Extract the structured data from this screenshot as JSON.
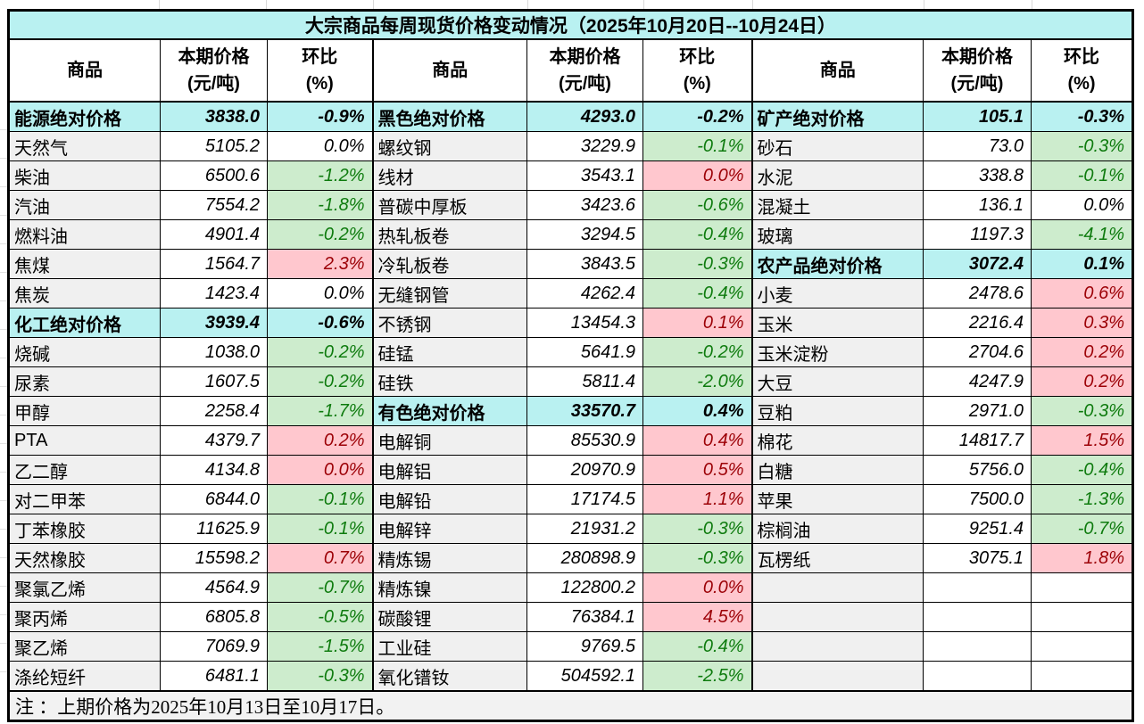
{
  "chart_data": {
    "type": "table",
    "title": "大宗商品每周现货价格变动情况（2025年10月20日--10月24日）",
    "note": "注 ：上期价格为2025年10月13日至10月17日。",
    "columns": {
      "name": "商品",
      "price_line1": "本期价格",
      "price_line2": "(元/吨)",
      "pct_line1": "环比",
      "pct_line2": "(%)"
    },
    "colors": {
      "section_bg": "#b9f1f1",
      "name_bg": "#f0f0f0",
      "pct_down_bg": "#cdeccd",
      "pct_down_text": "#0e7b0e",
      "pct_up_bg": "#ffc7ce",
      "pct_up_text": "#9c0006",
      "note_bg": "#f2f2f2",
      "border": "#000000"
    },
    "groups": [
      {
        "rows": [
          {
            "type": "section",
            "name": "能源绝对价格",
            "price": "3838.0",
            "pct": "-0.9%"
          },
          {
            "type": "flat",
            "name": "天然气",
            "price": "5105.2",
            "pct": "0.0%"
          },
          {
            "type": "down",
            "name": "柴油",
            "price": "6500.6",
            "pct": "-1.2%"
          },
          {
            "type": "down",
            "name": "汽油",
            "price": "7554.2",
            "pct": "-1.8%"
          },
          {
            "type": "down",
            "name": "燃料油",
            "price": "4901.4",
            "pct": "-0.2%"
          },
          {
            "type": "up",
            "name": "焦煤",
            "price": "1564.7",
            "pct": "2.3%"
          },
          {
            "type": "flat",
            "name": "焦炭",
            "price": "1423.4",
            "pct": "0.0%"
          },
          {
            "type": "section",
            "name": "化工绝对价格",
            "price": "3939.4",
            "pct": "-0.6%"
          },
          {
            "type": "down",
            "name": "烧碱",
            "price": "1038.0",
            "pct": "-0.2%"
          },
          {
            "type": "down",
            "name": "尿素",
            "price": "1607.5",
            "pct": "-0.2%"
          },
          {
            "type": "down",
            "name": "甲醇",
            "price": "2258.4",
            "pct": "-1.7%"
          },
          {
            "type": "up",
            "name": "PTA",
            "price": "4379.7",
            "pct": "0.2%"
          },
          {
            "type": "up",
            "name": "乙二醇",
            "price": "4134.8",
            "pct": "0.0%"
          },
          {
            "type": "down",
            "name": "对二甲苯",
            "price": "6844.0",
            "pct": "-0.1%"
          },
          {
            "type": "down",
            "name": "丁苯橡胶",
            "price": "11625.9",
            "pct": "-0.1%"
          },
          {
            "type": "up",
            "name": "天然橡胶",
            "price": "15598.2",
            "pct": "0.7%"
          },
          {
            "type": "down",
            "name": "聚氯乙烯",
            "price": "4564.9",
            "pct": "-0.7%"
          },
          {
            "type": "down",
            "name": "聚丙烯",
            "price": "6805.8",
            "pct": "-0.5%"
          },
          {
            "type": "down",
            "name": "聚乙烯",
            "price": "7069.9",
            "pct": "-1.5%"
          },
          {
            "type": "down",
            "name": "涤纶短纤",
            "price": "6481.1",
            "pct": "-0.3%"
          }
        ]
      },
      {
        "rows": [
          {
            "type": "section",
            "name": "黑色绝对价格",
            "price": "4293.0",
            "pct": "-0.2%"
          },
          {
            "type": "down",
            "name": "螺纹钢",
            "price": "3229.9",
            "pct": "-0.1%"
          },
          {
            "type": "up",
            "name": "线材",
            "price": "3543.1",
            "pct": "0.0%"
          },
          {
            "type": "down",
            "name": "普碳中厚板",
            "price": "3423.6",
            "pct": "-0.6%"
          },
          {
            "type": "down",
            "name": "热轧板卷",
            "price": "3294.5",
            "pct": "-0.4%"
          },
          {
            "type": "down",
            "name": "冷轧板卷",
            "price": "3843.5",
            "pct": "-0.3%"
          },
          {
            "type": "down",
            "name": "无缝钢管",
            "price": "4262.4",
            "pct": "-0.4%"
          },
          {
            "type": "up",
            "name": "不锈钢",
            "price": "13454.3",
            "pct": "0.1%"
          },
          {
            "type": "down",
            "name": "硅锰",
            "price": "5641.9",
            "pct": "-0.2%"
          },
          {
            "type": "down",
            "name": "硅铁",
            "price": "5811.4",
            "pct": "-2.0%"
          },
          {
            "type": "section",
            "name": "有色绝对价格",
            "price": "33570.7",
            "pct": "0.4%"
          },
          {
            "type": "up",
            "name": "电解铜",
            "price": "85530.9",
            "pct": "0.4%"
          },
          {
            "type": "up",
            "name": "电解铝",
            "price": "20970.9",
            "pct": "0.5%"
          },
          {
            "type": "up",
            "name": "电解铅",
            "price": "17174.5",
            "pct": "1.1%"
          },
          {
            "type": "down",
            "name": "电解锌",
            "price": "21931.2",
            "pct": "-0.3%"
          },
          {
            "type": "down",
            "name": "精炼锡",
            "price": "280898.9",
            "pct": "-0.3%"
          },
          {
            "type": "up",
            "name": "精炼镍",
            "price": "122800.2",
            "pct": "0.0%"
          },
          {
            "type": "up",
            "name": "碳酸锂",
            "price": "76384.1",
            "pct": "4.5%"
          },
          {
            "type": "down",
            "name": "工业硅",
            "price": "9769.5",
            "pct": "-0.4%"
          },
          {
            "type": "down",
            "name": "氧化镨钕",
            "price": "504592.1",
            "pct": "-2.5%"
          }
        ]
      },
      {
        "rows": [
          {
            "type": "section",
            "name": "矿产绝对价格",
            "price": "105.1",
            "pct": "-0.3%"
          },
          {
            "type": "down",
            "name": "砂石",
            "price": "73.0",
            "pct": "-0.3%"
          },
          {
            "type": "down",
            "name": "水泥",
            "price": "338.8",
            "pct": "-0.1%"
          },
          {
            "type": "flat",
            "name": "混凝土",
            "price": "136.1",
            "pct": "0.0%"
          },
          {
            "type": "down",
            "name": "玻璃",
            "price": "1197.3",
            "pct": "-4.1%"
          },
          {
            "type": "section",
            "name": "农产品绝对价格",
            "price": "3072.4",
            "pct": "0.1%"
          },
          {
            "type": "up",
            "name": "小麦",
            "price": "2478.6",
            "pct": "0.6%"
          },
          {
            "type": "up",
            "name": "玉米",
            "price": "2216.4",
            "pct": "0.3%"
          },
          {
            "type": "up",
            "name": "玉米淀粉",
            "price": "2704.6",
            "pct": "0.2%"
          },
          {
            "type": "up",
            "name": "大豆",
            "price": "4247.9",
            "pct": "0.2%"
          },
          {
            "type": "down",
            "name": "豆粕",
            "price": "2971.0",
            "pct": "-0.3%"
          },
          {
            "type": "up",
            "name": "棉花",
            "price": "14817.7",
            "pct": "1.5%"
          },
          {
            "type": "down",
            "name": "白糖",
            "price": "5756.0",
            "pct": "-0.4%"
          },
          {
            "type": "down",
            "name": "苹果",
            "price": "7500.0",
            "pct": "-1.3%"
          },
          {
            "type": "down",
            "name": "棕榈油",
            "price": "9251.4",
            "pct": "-0.7%"
          },
          {
            "type": "up",
            "name": "瓦楞纸",
            "price": "3075.1",
            "pct": "1.8%"
          },
          {
            "type": "empty"
          },
          {
            "type": "empty"
          },
          {
            "type": "empty"
          },
          {
            "type": "empty"
          }
        ]
      }
    ]
  }
}
